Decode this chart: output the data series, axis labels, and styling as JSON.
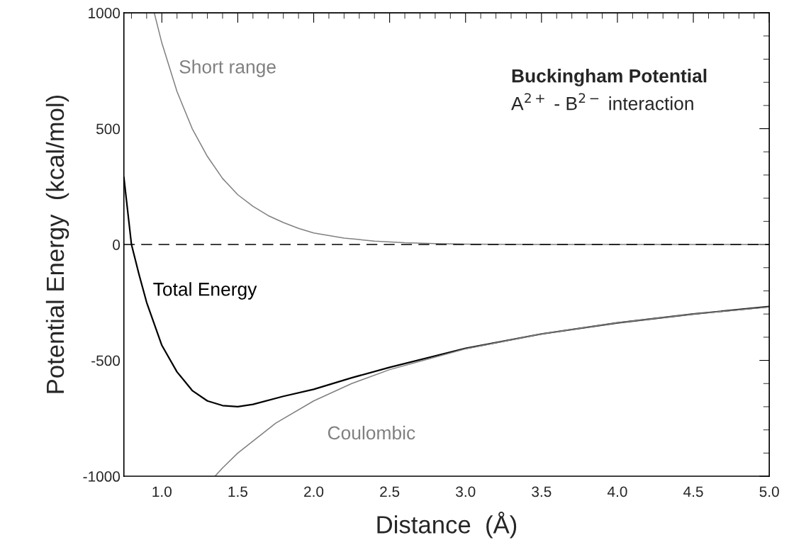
{
  "chart_data": {
    "type": "line",
    "title": "Buckingham Potential",
    "subtitle": "A$^{2+}$ - B$^{2−}$ interaction",
    "xlabel": "Distance  (Å)",
    "ylabel": "Potential Energy  (kcal/mol)",
    "series": [
      {
        "name": "Short range",
        "color": "#808080",
        "x": [
          0.95,
          1.0,
          1.1,
          1.2,
          1.3,
          1.4,
          1.5,
          1.6,
          1.7,
          1.8,
          1.9,
          2.0,
          2.2,
          2.4,
          2.6,
          2.8,
          3.0,
          3.5,
          5.0
        ],
        "values": [
          1000,
          870,
          660,
          500,
          380,
          285,
          215,
          165,
          125,
          95,
          70,
          50,
          28,
          15,
          8,
          4,
          2,
          0,
          0
        ]
      },
      {
        "name": "Total Energy",
        "color": "#000000",
        "x": [
          0.75,
          0.8,
          0.85,
          0.9,
          1.0,
          1.1,
          1.2,
          1.3,
          1.4,
          1.5,
          1.6,
          1.8,
          2.0,
          2.25,
          2.5,
          3.0,
          3.5,
          4.0,
          4.5,
          5.0
        ],
        "values": [
          290,
          0,
          -130,
          -250,
          -435,
          -550,
          -630,
          -675,
          -695,
          -700,
          -690,
          -655,
          -625,
          -575,
          -530,
          -448,
          -386,
          -338,
          -300,
          -268
        ]
      },
      {
        "name": "Coulombic",
        "color": "#808080",
        "x": [
          1.35,
          1.4,
          1.5,
          1.75,
          2.0,
          2.25,
          2.5,
          3.0,
          3.5,
          4.0,
          4.5,
          5.0
        ],
        "values": [
          -1000,
          -964,
          -900,
          -771,
          -675,
          -600,
          -540,
          -450,
          -386,
          -338,
          -300,
          -270
        ]
      }
    ],
    "ref_lines": [
      {
        "axis": "y",
        "value": 0,
        "line_style": "dashed",
        "color": "#000000"
      }
    ],
    "xlim": [
      0.75,
      5.0
    ],
    "ylim": [
      -1000,
      1000
    ],
    "xticks": [
      {
        "value": 1,
        "label": "1.0"
      },
      1.5,
      {
        "value": 2,
        "label": "2.0"
      },
      2.5,
      {
        "value": 3,
        "label": "3.0"
      },
      3.5,
      {
        "value": 4,
        "label": "4.0"
      },
      4.5,
      {
        "value": 5,
        "label": "5.0"
      }
    ],
    "yticks": [
      -1000,
      -500,
      0,
      500,
      1000
    ],
    "grid": false,
    "legend": false,
    "marker": "none",
    "line_style": "solid"
  }
}
